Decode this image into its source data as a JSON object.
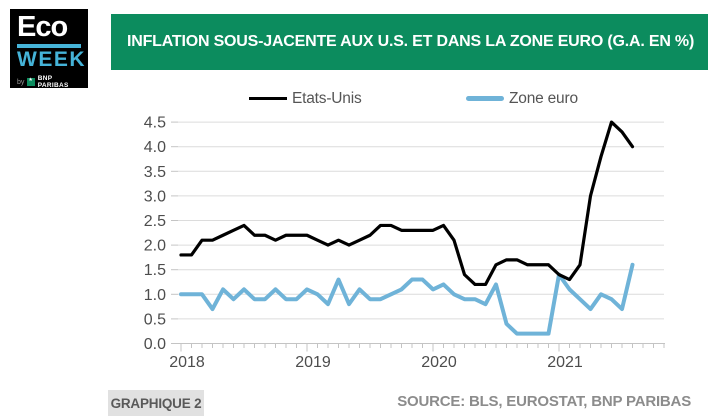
{
  "logo": {
    "line1": "Eco",
    "line2": "WEEK",
    "byline_by": "by",
    "byline_brand": "BNP PARIBAS"
  },
  "header": {
    "title": "INFLATION SOUS-JACENTE AUX U.S. ET DANS LA ZONE EURO (G.A. EN %)",
    "background_color": "#0C8C5E"
  },
  "footer": {
    "graph_label": "GRAPHIQUE 2",
    "source": "SOURCE: BLS, EUROSTAT, BNP PARIBAS"
  },
  "chart_data": {
    "type": "line",
    "title": "INFLATION SOUS-JACENTE AUX U.S. ET DANS LA ZONE EURO (G.A. EN %)",
    "x_start": "2018-01",
    "x_frequency": "monthly",
    "x_tick_labels": [
      "2018",
      "2019",
      "2020",
      "2021"
    ],
    "x_axis_total_months": 47,
    "ylim": [
      0,
      4.5
    ],
    "ytick_step": 0.5,
    "grid": "horizontal",
    "legend_position": "top",
    "series": [
      {
        "name": "Etats-Unis",
        "color": "#000000",
        "line_width": 3.2,
        "values": [
          1.8,
          1.8,
          2.1,
          2.1,
          2.2,
          2.3,
          2.4,
          2.2,
          2.2,
          2.1,
          2.2,
          2.2,
          2.2,
          2.1,
          2.0,
          2.1,
          2.0,
          2.1,
          2.2,
          2.4,
          2.4,
          2.3,
          2.3,
          2.3,
          2.3,
          2.4,
          2.1,
          1.4,
          1.2,
          1.2,
          1.6,
          1.7,
          1.7,
          1.6,
          1.6,
          1.6,
          1.4,
          1.3,
          1.6,
          3.0,
          3.8,
          4.5,
          4.3,
          4.0
        ]
      },
      {
        "name": "Zone euro",
        "color": "#6FB3D8",
        "line_width": 4,
        "values": [
          1.0,
          1.0,
          1.0,
          0.7,
          1.1,
          0.9,
          1.1,
          0.9,
          0.9,
          1.1,
          0.9,
          0.9,
          1.1,
          1.0,
          0.8,
          1.3,
          0.8,
          1.1,
          0.9,
          0.9,
          1.0,
          1.1,
          1.3,
          1.3,
          1.1,
          1.2,
          1.0,
          0.9,
          0.9,
          0.8,
          1.2,
          0.4,
          0.2,
          0.2,
          0.2,
          0.2,
          1.4,
          1.1,
          0.9,
          0.7,
          1.0,
          0.9,
          0.7,
          1.6
        ]
      }
    ]
  }
}
